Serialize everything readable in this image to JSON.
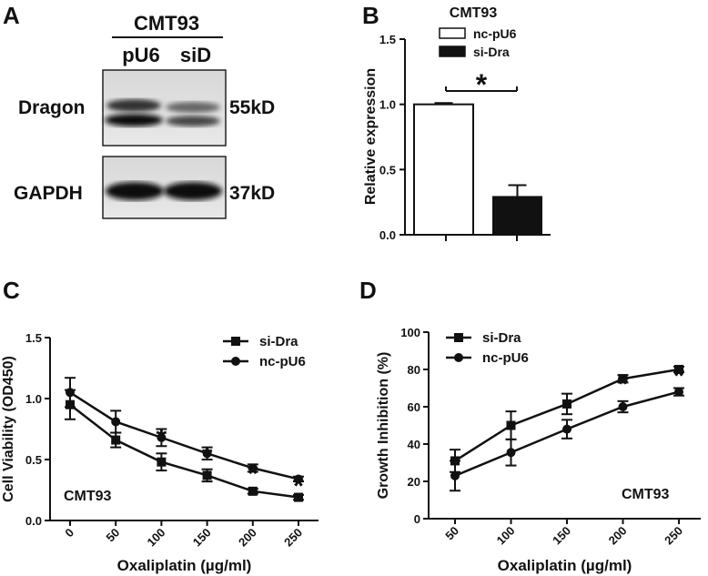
{
  "panel_labels": [
    "A",
    "B",
    "C",
    "D"
  ],
  "blot": {
    "cell_line": "CMT93",
    "lanes": [
      "pU6",
      "siD"
    ],
    "rows": [
      {
        "protein": "Dragon",
        "size": "55kD"
      },
      {
        "protein": "GAPDH",
        "size": "37kD"
      }
    ]
  },
  "chart_data": [
    {
      "type": "bar",
      "panel": "B",
      "title": "CMT93",
      "ylabel": "Relative expression",
      "ylim": [
        0,
        1.5
      ],
      "yticks": [
        "0.0",
        "0.5",
        "1.0",
        "1.5"
      ],
      "categories": [
        "nc-pU6",
        "si-Dra"
      ],
      "values": [
        1.0,
        0.29
      ],
      "errors": [
        0.01,
        0.09
      ],
      "colors": [
        "#ffffff",
        "#111111"
      ],
      "legend": [
        "nc-pU6",
        "si-Dra"
      ],
      "annotation": "*"
    },
    {
      "type": "line",
      "panel": "C",
      "xlabel": "Oxaliplatin (µg/ml)",
      "ylabel": "Cell Viability (OD450)",
      "ylim": [
        0,
        1.5
      ],
      "yticks": [
        "0.0",
        "0.5",
        "1.0",
        "1.5"
      ],
      "x": [
        0,
        50,
        100,
        150,
        200,
        250
      ],
      "xticks": [
        "0",
        "50",
        "100",
        "150",
        "200",
        "250"
      ],
      "annotation": "CMT93",
      "significant_x": [
        100,
        150,
        200,
        250
      ],
      "series": [
        {
          "name": "si-Dra",
          "marker": "square",
          "values": [
            0.95,
            0.66,
            0.48,
            0.37,
            0.24,
            0.19
          ],
          "errors": [
            0.12,
            0.06,
            0.07,
            0.05,
            0.02,
            0.02
          ]
        },
        {
          "name": "nc-pU6",
          "marker": "circle",
          "values": [
            1.05,
            0.81,
            0.68,
            0.55,
            0.43,
            0.34
          ],
          "errors": [
            0.12,
            0.09,
            0.07,
            0.05,
            0.03,
            0.02
          ]
        }
      ]
    },
    {
      "type": "line",
      "panel": "D",
      "xlabel": "Oxaliplatin (µg/ml)",
      "ylabel": "Growth Inhibition (%)",
      "ylim": [
        0,
        100
      ],
      "yticks": [
        "0",
        "20",
        "40",
        "60",
        "80",
        "100"
      ],
      "x": [
        50,
        100,
        150,
        200,
        250
      ],
      "xticks": [
        "50",
        "100",
        "150",
        "200",
        "250"
      ],
      "annotation": "CMT93",
      "significant_x": [
        200,
        250
      ],
      "series": [
        {
          "name": "si-Dra",
          "marker": "square",
          "values": [
            31,
            50,
            61.5,
            75,
            80
          ],
          "errors": [
            6,
            7.5,
            5.5,
            2,
            1.5
          ]
        },
        {
          "name": "nc-pU6",
          "marker": "circle",
          "values": [
            23,
            35.5,
            48,
            60,
            68
          ],
          "errors": [
            8,
            7,
            5,
            3,
            2
          ]
        }
      ]
    }
  ]
}
